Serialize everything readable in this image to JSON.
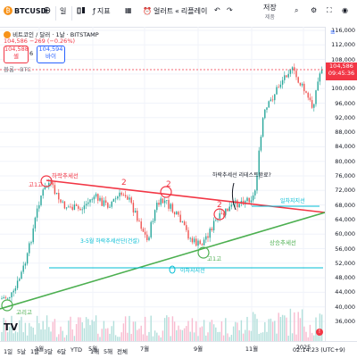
{
  "toolbar": {
    "symbol": "BTCUSD",
    "interval": "일",
    "indicators_label": "지표",
    "alert_label": "얼러트",
    "replay_label": "리플레이",
    "save_label": "저장",
    "save_sub": "제품",
    "colors": {
      "accent": "#2962ff",
      "btc": "#f7931a"
    }
  },
  "legend": {
    "title": "비트코인 / 달러 · 1날 · BITSTAMP",
    "price_line": "104,586 −269 (−0.26%)",
    "sell_price": "104,588",
    "sell_label": "셀",
    "spread": "6",
    "buy_price": "104,594",
    "buy_label": "바이",
    "volume_label": "볼륨 · BTC"
  },
  "price_axis": {
    "ticks": [
      "116,000",
      "112,000",
      "108,000",
      "104,000",
      "100,000",
      "96,000",
      "92,000",
      "88,000",
      "84,000",
      "80,000",
      "76,000",
      "72,000",
      "68,000",
      "64,000",
      "60,000",
      "56,000",
      "52,000",
      "48,000",
      "44,000",
      "40,000",
      "36,000"
    ],
    "current_price": "104,586",
    "countdown": "09:45:36",
    "colors": {
      "current": "#f23645"
    }
  },
  "time_axis": {
    "ticks": [
      "3월",
      "5월",
      "7월",
      "9월",
      "11월",
      "2025"
    ],
    "ranges": [
      "1일",
      "5날",
      "1달",
      "3달",
      "6달",
      "YTD",
      "1해",
      "5해",
      "전체"
    ],
    "clock": "02:14:23 (UTC+9)"
  },
  "annotations": {
    "downtrend": "하락추세선",
    "uptrend": "상승추세선",
    "breakout_note": "하락추세선 리테스트완료?",
    "support_1": "일차지지선",
    "support_2": "이차지지선",
    "wave_note": "3-5월 하락추세선단(건설)",
    "touch_top_1": "고1고",
    "touch_top_2": "2",
    "touch_top_3": "2",
    "touch_top_4": "2",
    "touch_bottom": "고리고",
    "touch_bottom_2": "고1고",
    "tv_logo": "TV",
    "colors": {
      "red": "#f23645",
      "green": "#4caf50",
      "cyan": "#00bcd4",
      "candle_up": "#26a69a",
      "candle_down": "#ef5350"
    }
  }
}
